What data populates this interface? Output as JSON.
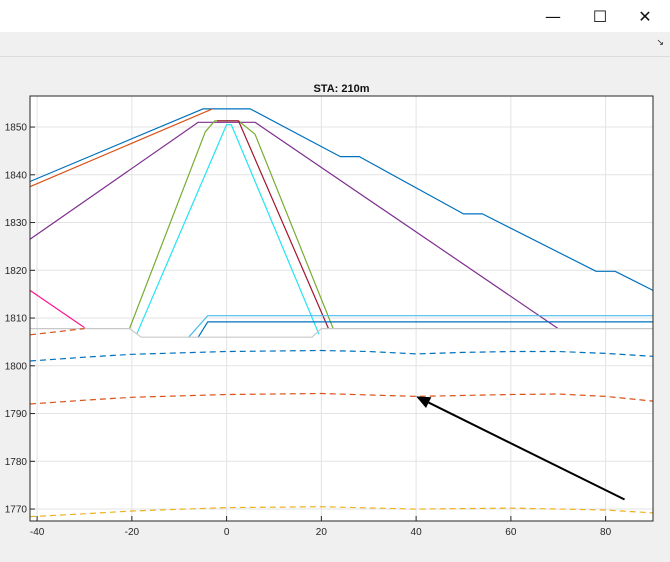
{
  "window": {
    "minimize_glyph": "—",
    "maximize_glyph": "☐",
    "close_glyph": "✕",
    "undock_glyph": "↘"
  },
  "colors": {
    "blue": "#0072bd",
    "orange": "#d95319",
    "purple": "#7e2f8e",
    "green": "#77ac30",
    "cyan": "#4dbeee",
    "aqua": "#22e4f4",
    "red": "#a2142f",
    "magenta": "#ff1493",
    "gray": "#c8c8c8",
    "yellow": "#edb120",
    "arrow": "#000000"
  },
  "chart_data": {
    "type": "line",
    "title": "STA: 210m",
    "xlabel": "",
    "ylabel": "",
    "xlim": [
      -41.5,
      90
    ],
    "ylim": [
      1767.5,
      1856.5
    ],
    "xticks": [
      -40,
      -20,
      0,
      20,
      40,
      60,
      80
    ],
    "yticks": [
      1770,
      1780,
      1790,
      1800,
      1810,
      1820,
      1830,
      1840,
      1850
    ],
    "grid": true,
    "series": [
      {
        "key": "top_surface",
        "color": "blue",
        "dash": false,
        "points": [
          [
            -41.5,
            1838.6
          ],
          [
            -5,
            1853.8
          ],
          [
            5,
            1853.8
          ],
          [
            24,
            1843.8
          ],
          [
            28,
            1843.8
          ],
          [
            50,
            1831.8
          ],
          [
            54,
            1831.8
          ],
          [
            78,
            1819.8
          ],
          [
            82,
            1819.8
          ],
          [
            90,
            1815.8
          ]
        ]
      },
      {
        "key": "left_orange",
        "color": "orange",
        "dash": false,
        "points": [
          [
            -41.5,
            1837.5
          ],
          [
            -3,
            1853.8
          ]
        ]
      },
      {
        "key": "purple_core",
        "color": "purple",
        "dash": false,
        "points": [
          [
            -41.5,
            1826.5
          ],
          [
            -6,
            1851
          ],
          [
            6,
            1851
          ],
          [
            70,
            1807.8
          ]
        ]
      },
      {
        "key": "green_zone",
        "color": "green",
        "dash": false,
        "points": [
          [
            -20.5,
            1807.8
          ],
          [
            -4.5,
            1849
          ],
          [
            -2.5,
            1851.3
          ],
          [
            2.5,
            1851.3
          ],
          [
            6,
            1848.5
          ],
          [
            22.5,
            1807.8
          ]
        ]
      },
      {
        "key": "red_zone",
        "color": "red",
        "dash": false,
        "points": [
          [
            -2,
            1851.3
          ],
          [
            2.5,
            1851.3
          ],
          [
            21.5,
            1807.8
          ]
        ]
      },
      {
        "key": "aqua_core",
        "color": "aqua",
        "dash": false,
        "points": [
          [
            -19,
            1806.6
          ],
          [
            0,
            1850.5
          ],
          [
            1,
            1850.5
          ],
          [
            19.5,
            1806.6
          ]
        ]
      },
      {
        "key": "cyan_upper",
        "color": "cyan",
        "dash": false,
        "points": [
          [
            -8,
            1806
          ],
          [
            -4,
            1810.5
          ],
          [
            90,
            1810.5
          ]
        ]
      },
      {
        "key": "blue_lower",
        "color": "blue",
        "dash": false,
        "points": [
          [
            -6,
            1806
          ],
          [
            -4,
            1809.2
          ],
          [
            90,
            1809.2
          ]
        ]
      },
      {
        "key": "ground_gray",
        "color": "gray",
        "dash": false,
        "points": [
          [
            -41.5,
            1807.8
          ],
          [
            -20.5,
            1807.8
          ],
          [
            -18,
            1806
          ],
          [
            18,
            1806
          ],
          [
            20,
            1807.8
          ],
          [
            90,
            1807.8
          ]
        ]
      },
      {
        "key": "magenta_left",
        "color": "magenta",
        "dash": false,
        "points": [
          [
            -41.5,
            1815.8
          ],
          [
            -30,
            1808
          ]
        ]
      },
      {
        "key": "dash_orange_top",
        "color": "orange",
        "dash": true,
        "points": [
          [
            -41.5,
            1806.5
          ],
          [
            -30,
            1807.8
          ]
        ]
      },
      {
        "key": "dash_blue",
        "color": "blue",
        "dash": true,
        "points": [
          [
            -41.5,
            1801
          ],
          [
            -30,
            1801.8
          ],
          [
            -20,
            1802.4
          ],
          [
            0,
            1803
          ],
          [
            20,
            1803.2
          ],
          [
            30,
            1803
          ],
          [
            40,
            1802.5
          ],
          [
            50,
            1802.8
          ],
          [
            60,
            1803
          ],
          [
            70,
            1803
          ],
          [
            80,
            1802.6
          ],
          [
            90,
            1802
          ]
        ]
      },
      {
        "key": "dash_orange",
        "color": "orange",
        "dash": true,
        "points": [
          [
            -41.5,
            1792
          ],
          [
            -30,
            1792.8
          ],
          [
            -20,
            1793.4
          ],
          [
            0,
            1794
          ],
          [
            20,
            1794.2
          ],
          [
            40,
            1793.6
          ],
          [
            60,
            1794
          ],
          [
            70,
            1794.1
          ],
          [
            80,
            1793.6
          ],
          [
            90,
            1792.6
          ]
        ]
      },
      {
        "key": "dash_yellow",
        "color": "yellow",
        "dash": true,
        "points": [
          [
            -41.5,
            1768.4
          ],
          [
            -30,
            1769
          ],
          [
            -20,
            1769.6
          ],
          [
            0,
            1770.3
          ],
          [
            20,
            1770.5
          ],
          [
            40,
            1770
          ],
          [
            60,
            1770.2
          ],
          [
            80,
            1769.8
          ],
          [
            90,
            1769.2
          ]
        ]
      }
    ],
    "annotation": {
      "type": "arrow",
      "from": [
        84,
        1772
      ],
      "to": [
        40,
        1793.6
      ],
      "color": "arrow"
    }
  }
}
